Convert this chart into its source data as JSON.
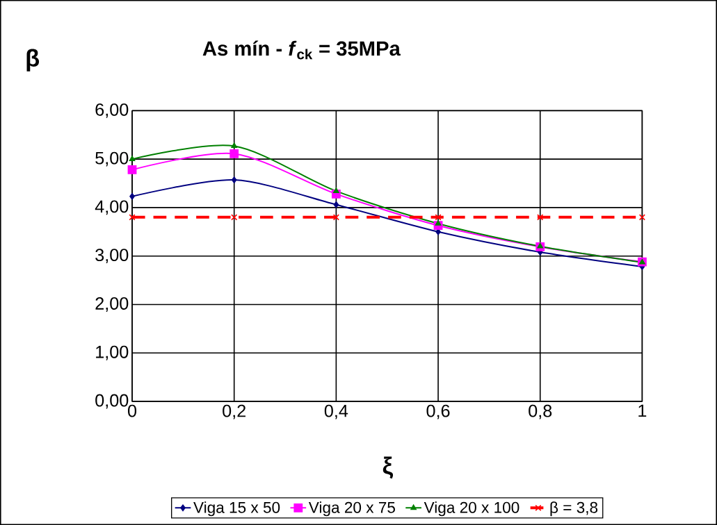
{
  "chart_data": {
    "type": "line",
    "title": "As mín - *f*$_{ck}$ = 35MPa",
    "xlabel": "ξ",
    "ylabel": "β",
    "x": [
      0,
      0.2,
      0.4,
      0.6,
      0.8,
      1
    ],
    "xlim": [
      0,
      1
    ],
    "ylim": [
      0,
      6
    ],
    "xticks": [
      0,
      {
        "value": 0.2,
        "label": "0,2"
      },
      {
        "value": 0.4,
        "label": "0,4"
      },
      {
        "value": 0.6,
        "label": "0,6"
      },
      {
        "value": 0.8,
        "label": "0,8"
      },
      1
    ],
    "yticks": [
      {
        "value": 0,
        "label": "0,00"
      },
      {
        "value": 1,
        "label": "1,00"
      },
      {
        "value": 2,
        "label": "2,00"
      },
      {
        "value": 3,
        "label": "3,00"
      },
      {
        "value": 4,
        "label": "4,00"
      },
      {
        "value": 5,
        "label": "5,00"
      },
      {
        "value": 6,
        "label": "6,00"
      }
    ],
    "grid": true,
    "legend": "bottom",
    "series": [
      {
        "name": "Viga 15 x 50",
        "color": "#000080",
        "marker": "diamond",
        "values": [
          4.23,
          4.57,
          4.06,
          3.5,
          3.08,
          2.78
        ]
      },
      {
        "name": "Viga 20 x 75",
        "color": "#ff00ff",
        "marker": "square",
        "values": [
          4.78,
          5.11,
          4.28,
          3.63,
          3.19,
          2.88
        ]
      },
      {
        "name": "Viga 20 x 100",
        "color": "#008000",
        "marker": "triangle",
        "values": [
          5.0,
          5.27,
          4.34,
          3.67,
          3.2,
          2.87
        ]
      },
      {
        "name": "β = 3,8",
        "color": "#ff0000",
        "marker": "cross",
        "line_style": "dashed",
        "values": [
          3.8,
          3.8,
          3.8,
          3.8,
          3.8,
          3.8
        ]
      }
    ]
  }
}
